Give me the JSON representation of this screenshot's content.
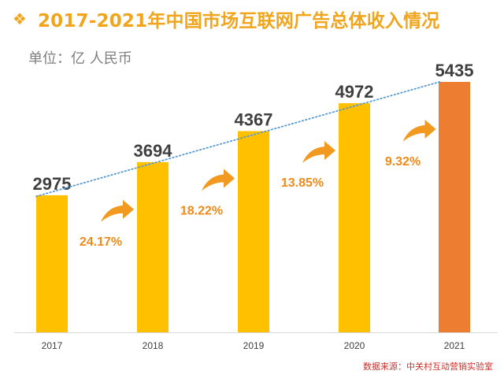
{
  "header": {
    "bullet": "❖",
    "title": "2017-2021年中国市场互联网广告总体收入情况",
    "unit": "单位：亿 人民币"
  },
  "footer": {
    "source": "数据来源：中关村互动营销实验室"
  },
  "colors": {
    "title": "#f0a51c",
    "bar_main": "#ffc000",
    "bar_highlight": "#ed7d31",
    "growth_label": "#ef8a1a",
    "arrow": "#f19a1f",
    "trendline": "#5b9bd5"
  },
  "chart_data": {
    "type": "bar",
    "title": "2017-2021年中国市场互联网广告总体收入情况",
    "ylabel": "",
    "categories": [
      "2017",
      "2018",
      "2019",
      "2020",
      "2021"
    ],
    "values": [
      2975,
      3694,
      4367,
      4972,
      5435
    ],
    "value_labels": [
      "2975",
      "3694",
      "4367",
      "4972",
      "5435"
    ],
    "highlight_index": 4,
    "growth_rates": [
      "24.17%",
      "18.22%",
      "13.85%",
      "9.32%"
    ],
    "ylim": [
      0,
      5435
    ],
    "grid": false,
    "trendline": "dotted linear",
    "legend": "none"
  }
}
